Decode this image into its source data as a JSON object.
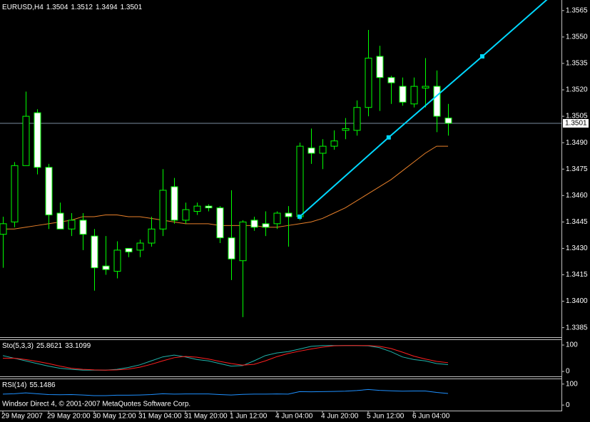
{
  "chart_data": [
    {
      "type": "candlestick",
      "title": "EURUSD,H4",
      "categories": [
        "29 May 2007",
        null,
        null,
        null,
        "29 May 20:00",
        null,
        null,
        null,
        "30 May 12:00",
        null,
        null,
        null,
        "31 May 04:00",
        null,
        null,
        null,
        "31 May 20:00",
        null,
        null,
        null,
        "1 Jun 12:00",
        null,
        null,
        null,
        "4 Jun 04:00",
        null,
        null,
        null,
        "4 Jun 20:00",
        null,
        null,
        null,
        "5 Jun 12:00",
        null,
        null,
        null,
        "6 Jun 04:00",
        null,
        null,
        null
      ],
      "open": [
        1.3438,
        1.3445,
        1.3477,
        1.3507,
        1.3476,
        1.345,
        1.3441,
        1.3446,
        1.3437,
        1.342,
        1.3417,
        1.343,
        1.3429,
        1.3433,
        1.3441,
        1.3465,
        1.3446,
        1.3451,
        1.3454,
        1.3453,
        1.3436,
        1.3423,
        1.3446,
        1.3444,
        1.3444,
        1.345,
        1.3448,
        1.3487,
        1.3484,
        1.3488,
        1.3497,
        1.3497,
        1.351,
        1.3539,
        1.3527,
        1.3522,
        1.3512,
        1.3521,
        1.3522,
        1.3504
      ],
      "high": [
        1.3448,
        1.3479,
        1.3519,
        1.3509,
        1.3478,
        1.3456,
        1.345,
        1.345,
        1.3441,
        1.3437,
        1.3434,
        1.343,
        1.3435,
        1.3448,
        1.3475,
        1.347,
        1.3456,
        1.3456,
        1.3455,
        1.3454,
        1.3463,
        1.3446,
        1.3448,
        1.3451,
        1.3451,
        1.3454,
        1.349,
        1.3498,
        1.3492,
        1.3497,
        1.3504,
        1.3514,
        1.3554,
        1.3545,
        1.3528,
        1.3527,
        1.3527,
        1.3538,
        1.3531,
        1.3512
      ],
      "low": [
        1.3419,
        1.3442,
        1.3477,
        1.3472,
        1.3441,
        1.3441,
        1.3437,
        1.3429,
        1.3406,
        1.3415,
        1.3413,
        1.3425,
        1.3425,
        1.3431,
        1.3437,
        1.3444,
        1.3444,
        1.3449,
        1.3451,
        1.3433,
        1.3412,
        1.3391,
        1.344,
        1.3437,
        1.3441,
        1.3431,
        1.3446,
        1.3478,
        1.3475,
        1.3486,
        1.3492,
        1.3494,
        1.3505,
        1.3508,
        1.3512,
        1.3511,
        1.351,
        1.351,
        1.3496,
        1.3494
      ],
      "close": [
        1.3444,
        1.3477,
        1.3505,
        1.3476,
        1.3449,
        1.3441,
        1.3446,
        1.3438,
        1.3419,
        1.3418,
        1.3429,
        1.3428,
        1.3433,
        1.3441,
        1.3463,
        1.3446,
        1.3452,
        1.3454,
        1.3453,
        1.3436,
        1.3424,
        1.3445,
        1.3442,
        1.3442,
        1.345,
        1.3448,
        1.3488,
        1.3484,
        1.3488,
        1.3491,
        1.3498,
        1.351,
        1.3538,
        1.3527,
        1.3524,
        1.3513,
        1.3522,
        1.3522,
        1.3505,
        1.3501
      ],
      "up_color": "#000000",
      "down_color": "#ffffff",
      "bar_color": "#00ff00",
      "ylim": [
        1.338,
        1.3571
      ],
      "yticks": [
        1.3565,
        {
          "value": 1.355,
          "label": "1.3550"
        },
        1.3535,
        {
          "value": 1.352,
          "label": "1.3520"
        },
        1.3505,
        {
          "value": 1.349,
          "label": "1.3490"
        },
        1.3475,
        {
          "value": 1.346,
          "label": "1.3460"
        },
        1.3445,
        {
          "value": 1.343,
          "label": "1.3430"
        },
        1.3415,
        {
          "value": 1.34,
          "label": "1.3400"
        },
        1.3385
      ],
      "moving_average": {
        "color": "#e8802a",
        "values": [
          1.3441,
          1.3441,
          1.3442,
          1.3443,
          1.3444,
          1.3445,
          1.3446,
          1.3448,
          1.3448,
          1.3449,
          1.3449,
          1.3448,
          1.3448,
          1.3447,
          1.3446,
          1.3445,
          1.3444,
          1.3444,
          1.3444,
          1.3443,
          1.3443,
          1.3443,
          1.3443,
          1.3442,
          1.3442,
          1.3443,
          1.3444,
          1.3445,
          1.3447,
          1.345,
          1.3453,
          1.3457,
          1.3461,
          1.3465,
          1.3469,
          1.3474,
          1.3479,
          1.3484,
          1.3488,
          1.3488
        ]
      },
      "trendline": {
        "color": "#00d8ff",
        "x": [
          26,
          33.8,
          42
        ],
        "y": [
          1.3448,
          1.3493,
          1.3539
        ],
        "ray": true
      },
      "price_line": {
        "color": "#7a8ca0"
      }
    },
    {
      "type": "line",
      "title": "Sto(5,3,3)",
      "ylim": [
        -16,
        119
      ],
      "yticks": [
        100,
        0
      ],
      "series": [
        {
          "color": "#20b2aa",
          "values": [
            60,
            50,
            40,
            30,
            20,
            12,
            8,
            5,
            5,
            5,
            8,
            15,
            25,
            40,
            55,
            62,
            55,
            45,
            40,
            30,
            20,
            22,
            40,
            60,
            70,
            75,
            85,
            95,
            98,
            98,
            98,
            98,
            97,
            90,
            75,
            55,
            45,
            40,
            30,
            25.8621
          ]
        },
        {
          "color": "#ff2020",
          "values": [
            50,
            50,
            45,
            38,
            30,
            20,
            12,
            8,
            6,
            5,
            6,
            9,
            16,
            27,
            40,
            52,
            57,
            54,
            47,
            38,
            30,
            24,
            27,
            40,
            56,
            68,
            77,
            85,
            92,
            97,
            98,
            98,
            98,
            95,
            87,
            73,
            58,
            47,
            38,
            33.1099
          ]
        }
      ]
    },
    {
      "type": "line",
      "title": "RSI(14)",
      "annotation": "Windsor Direct 4, © 2001-2007 MetaQuotes Software Corp.",
      "ylim": [
        -23,
        123
      ],
      "yticks": [
        100,
        0
      ],
      "series": [
        {
          "color": "#1e90ff",
          "values": [
            52,
            54,
            58,
            54,
            50,
            49,
            50,
            48,
            45,
            45,
            47,
            47,
            48,
            50,
            54,
            52,
            53,
            53,
            53,
            50,
            48,
            51,
            52,
            52,
            53,
            52,
            64,
            63,
            64,
            65,
            66,
            69,
            74,
            70,
            68,
            66,
            67,
            67,
            60,
            55.1486
          ]
        }
      ]
    }
  ]
}
